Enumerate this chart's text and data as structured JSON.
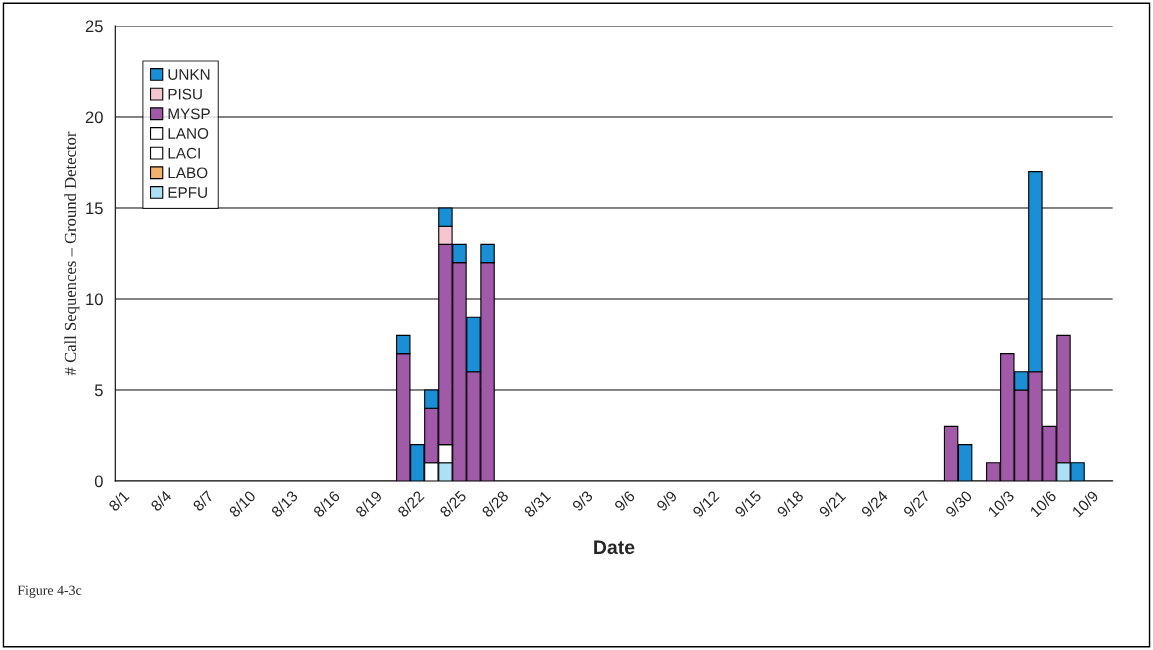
{
  "chart_data": {
    "type": "bar",
    "stacked": true,
    "xlabel": "Date",
    "ylabel": "# Call Sequences – Ground Detector",
    "annotations": [
      "Figure 4-3c"
    ],
    "categories": [
      "8/1",
      null,
      null,
      "8/4",
      null,
      null,
      "8/7",
      null,
      null,
      "8/10",
      null,
      null,
      "8/13",
      null,
      null,
      "8/16",
      null,
      null,
      "8/19",
      null,
      null,
      "8/22",
      null,
      null,
      "8/25",
      null,
      null,
      "8/28",
      null,
      null,
      "8/31",
      null,
      null,
      "9/3",
      null,
      null,
      "9/6",
      null,
      null,
      "9/9",
      null,
      null,
      "9/12",
      null,
      null,
      "9/15",
      null,
      null,
      "9/18",
      null,
      null,
      "9/21",
      null,
      null,
      "9/24",
      null,
      null,
      "9/27",
      null,
      null,
      "9/30",
      null,
      null,
      "10/3",
      null,
      null,
      "10/6",
      null,
      null,
      "10/9",
      null
    ],
    "series": [
      {
        "name": "EPFU",
        "color": "#aee0f5",
        "values": [
          null,
          null,
          null,
          null,
          null,
          null,
          null,
          null,
          null,
          null,
          null,
          null,
          null,
          null,
          null,
          null,
          null,
          null,
          null,
          null,
          null,
          null,
          null,
          1,
          null,
          null,
          null,
          null,
          null,
          null,
          null,
          null,
          null,
          null,
          null,
          null,
          null,
          null,
          null,
          null,
          null,
          null,
          null,
          null,
          null,
          null,
          null,
          null,
          null,
          null,
          null,
          null,
          null,
          null,
          null,
          null,
          null,
          null,
          null,
          null,
          null,
          null,
          null,
          null,
          null,
          null,
          null,
          1,
          null,
          null,
          null
        ]
      },
      {
        "name": "LABO",
        "color": "#f4b26b",
        "values": [
          null,
          null,
          null,
          null,
          null,
          null,
          null,
          null,
          null,
          null,
          null,
          null,
          null,
          null,
          null,
          null,
          null,
          null,
          null,
          null,
          null,
          null,
          null,
          null,
          null,
          null,
          null,
          null,
          null,
          null,
          null,
          null,
          null,
          null,
          null,
          null,
          null,
          null,
          null,
          null,
          null,
          null,
          null,
          null,
          null,
          null,
          null,
          null,
          null,
          null,
          null,
          null,
          null,
          null,
          null,
          null,
          null,
          null,
          null,
          null,
          null,
          null,
          null,
          null,
          null,
          null,
          null,
          null,
          null,
          null,
          null
        ]
      },
      {
        "name": "LACI",
        "color": "#ffffff",
        "values": [
          null,
          null,
          null,
          null,
          null,
          null,
          null,
          null,
          null,
          null,
          null,
          null,
          null,
          null,
          null,
          null,
          null,
          null,
          null,
          null,
          null,
          null,
          1,
          null,
          null,
          null,
          null,
          null,
          null,
          null,
          null,
          null,
          null,
          null,
          null,
          null,
          null,
          null,
          null,
          null,
          null,
          null,
          null,
          null,
          null,
          null,
          null,
          null,
          null,
          null,
          null,
          null,
          null,
          null,
          null,
          null,
          null,
          null,
          null,
          null,
          null,
          null,
          null,
          null,
          null,
          null,
          null,
          null,
          null,
          null,
          null
        ]
      },
      {
        "name": "LANO",
        "color": "#ffffff",
        "values": [
          null,
          null,
          null,
          null,
          null,
          null,
          null,
          null,
          null,
          null,
          null,
          null,
          null,
          null,
          null,
          null,
          null,
          null,
          null,
          null,
          null,
          null,
          null,
          1,
          null,
          null,
          null,
          null,
          null,
          null,
          null,
          null,
          null,
          null,
          null,
          null,
          null,
          null,
          null,
          null,
          null,
          null,
          null,
          null,
          null,
          null,
          null,
          null,
          null,
          null,
          null,
          null,
          null,
          null,
          null,
          null,
          null,
          null,
          null,
          null,
          null,
          null,
          null,
          null,
          null,
          null,
          null,
          null,
          null,
          null,
          null
        ]
      },
      {
        "name": "MYSP",
        "color": "#a05aa8",
        "values": [
          null,
          null,
          null,
          null,
          null,
          null,
          null,
          null,
          null,
          null,
          null,
          null,
          null,
          null,
          null,
          null,
          null,
          null,
          null,
          null,
          7,
          null,
          3,
          11,
          12,
          6,
          12,
          null,
          null,
          null,
          null,
          null,
          null,
          null,
          null,
          null,
          null,
          null,
          null,
          null,
          null,
          null,
          null,
          null,
          null,
          null,
          null,
          null,
          null,
          null,
          null,
          null,
          null,
          null,
          null,
          null,
          null,
          null,
          null,
          3,
          null,
          null,
          1,
          7,
          5,
          6,
          3,
          7,
          null,
          null,
          null
        ]
      },
      {
        "name": "PISU",
        "color": "#f5c6cf",
        "values": [
          null,
          null,
          null,
          null,
          null,
          null,
          null,
          null,
          null,
          null,
          null,
          null,
          null,
          null,
          null,
          null,
          null,
          null,
          null,
          null,
          null,
          null,
          null,
          1,
          null,
          null,
          null,
          null,
          null,
          null,
          null,
          null,
          null,
          null,
          null,
          null,
          null,
          null,
          null,
          null,
          null,
          null,
          null,
          null,
          null,
          null,
          null,
          null,
          null,
          null,
          null,
          null,
          null,
          null,
          null,
          null,
          null,
          null,
          null,
          null,
          null,
          null,
          null,
          null,
          null,
          null,
          null,
          null,
          null,
          null,
          null
        ]
      },
      {
        "name": "UNKN",
        "color": "#1a8fd6",
        "values": [
          null,
          null,
          null,
          null,
          null,
          null,
          null,
          null,
          null,
          null,
          null,
          null,
          null,
          null,
          null,
          null,
          null,
          null,
          null,
          null,
          1,
          2,
          1,
          1,
          1,
          3,
          1,
          null,
          null,
          null,
          null,
          null,
          null,
          null,
          null,
          null,
          null,
          null,
          null,
          null,
          null,
          null,
          null,
          null,
          null,
          null,
          null,
          null,
          null,
          null,
          null,
          null,
          null,
          null,
          null,
          null,
          null,
          null,
          null,
          null,
          2,
          null,
          null,
          null,
          1,
          11,
          null,
          null,
          1,
          null,
          null
        ]
      }
    ],
    "ylim": [
      0,
      25
    ],
    "yticks": [
      0,
      5,
      10,
      15,
      20,
      25
    ],
    "grid": "y",
    "legend": "top left"
  }
}
